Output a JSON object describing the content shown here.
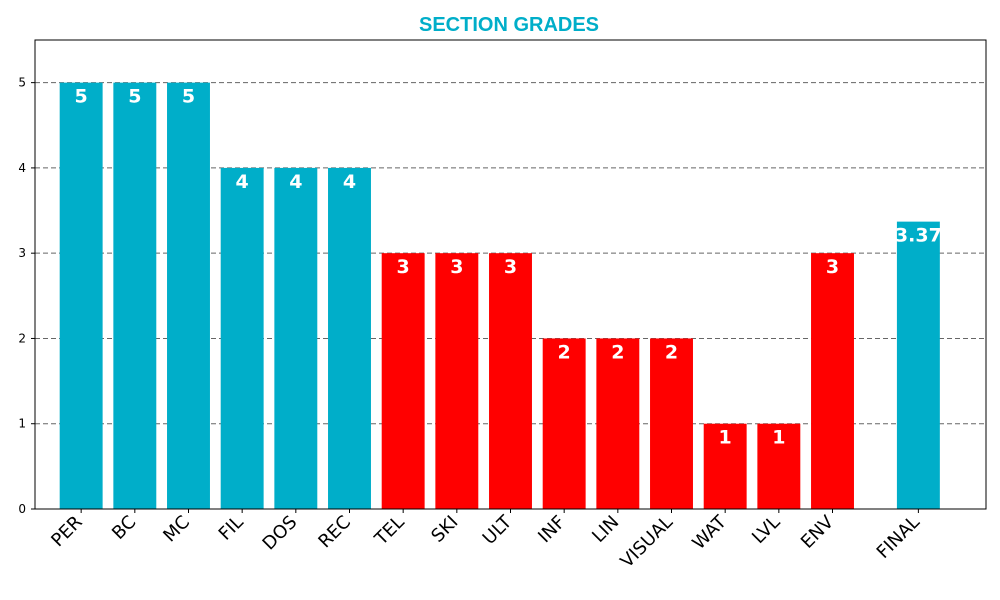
{
  "chart_data": {
    "type": "bar",
    "title": "SECTION GRADES",
    "xlabel": "",
    "ylabel": "",
    "ylim": [
      0,
      5.5
    ],
    "yticks": [
      0,
      1,
      2,
      3,
      4,
      5
    ],
    "grid": "horizontal dashed",
    "categories": [
      "PER",
      "BC",
      "MC",
      "FIL",
      "DOS",
      "REC",
      "TEL",
      "SKI",
      "ULT",
      "INF",
      "LIN",
      "VISUAL",
      "WAT",
      "LVL",
      "ENV",
      "FINAL"
    ],
    "x": [
      0,
      1,
      2,
      3,
      4,
      5,
      6,
      7,
      8,
      9,
      10,
      11,
      12,
      13,
      14,
      15.6
    ],
    "values": [
      5,
      5,
      5,
      4,
      4,
      4,
      3,
      3,
      3,
      2,
      2,
      2,
      1,
      1,
      3,
      3.37
    ],
    "data_labels": [
      "5",
      "5",
      "5",
      "4",
      "4",
      "4",
      "3",
      "3",
      "3",
      "2",
      "2",
      "2",
      "1",
      "1",
      "3",
      "3.37"
    ],
    "bar_colors": [
      "#00aec9",
      "#00aec9",
      "#00aec9",
      "#00aec9",
      "#00aec9",
      "#00aec9",
      "#ff0000",
      "#ff0000",
      "#ff0000",
      "#ff0000",
      "#ff0000",
      "#ff0000",
      "#ff0000",
      "#ff0000",
      "#ff0000",
      "#00aec9"
    ]
  },
  "colors": {
    "title": "#00aec9",
    "good": "#00aec9",
    "bad": "#ff0000",
    "grid": "#666666"
  }
}
